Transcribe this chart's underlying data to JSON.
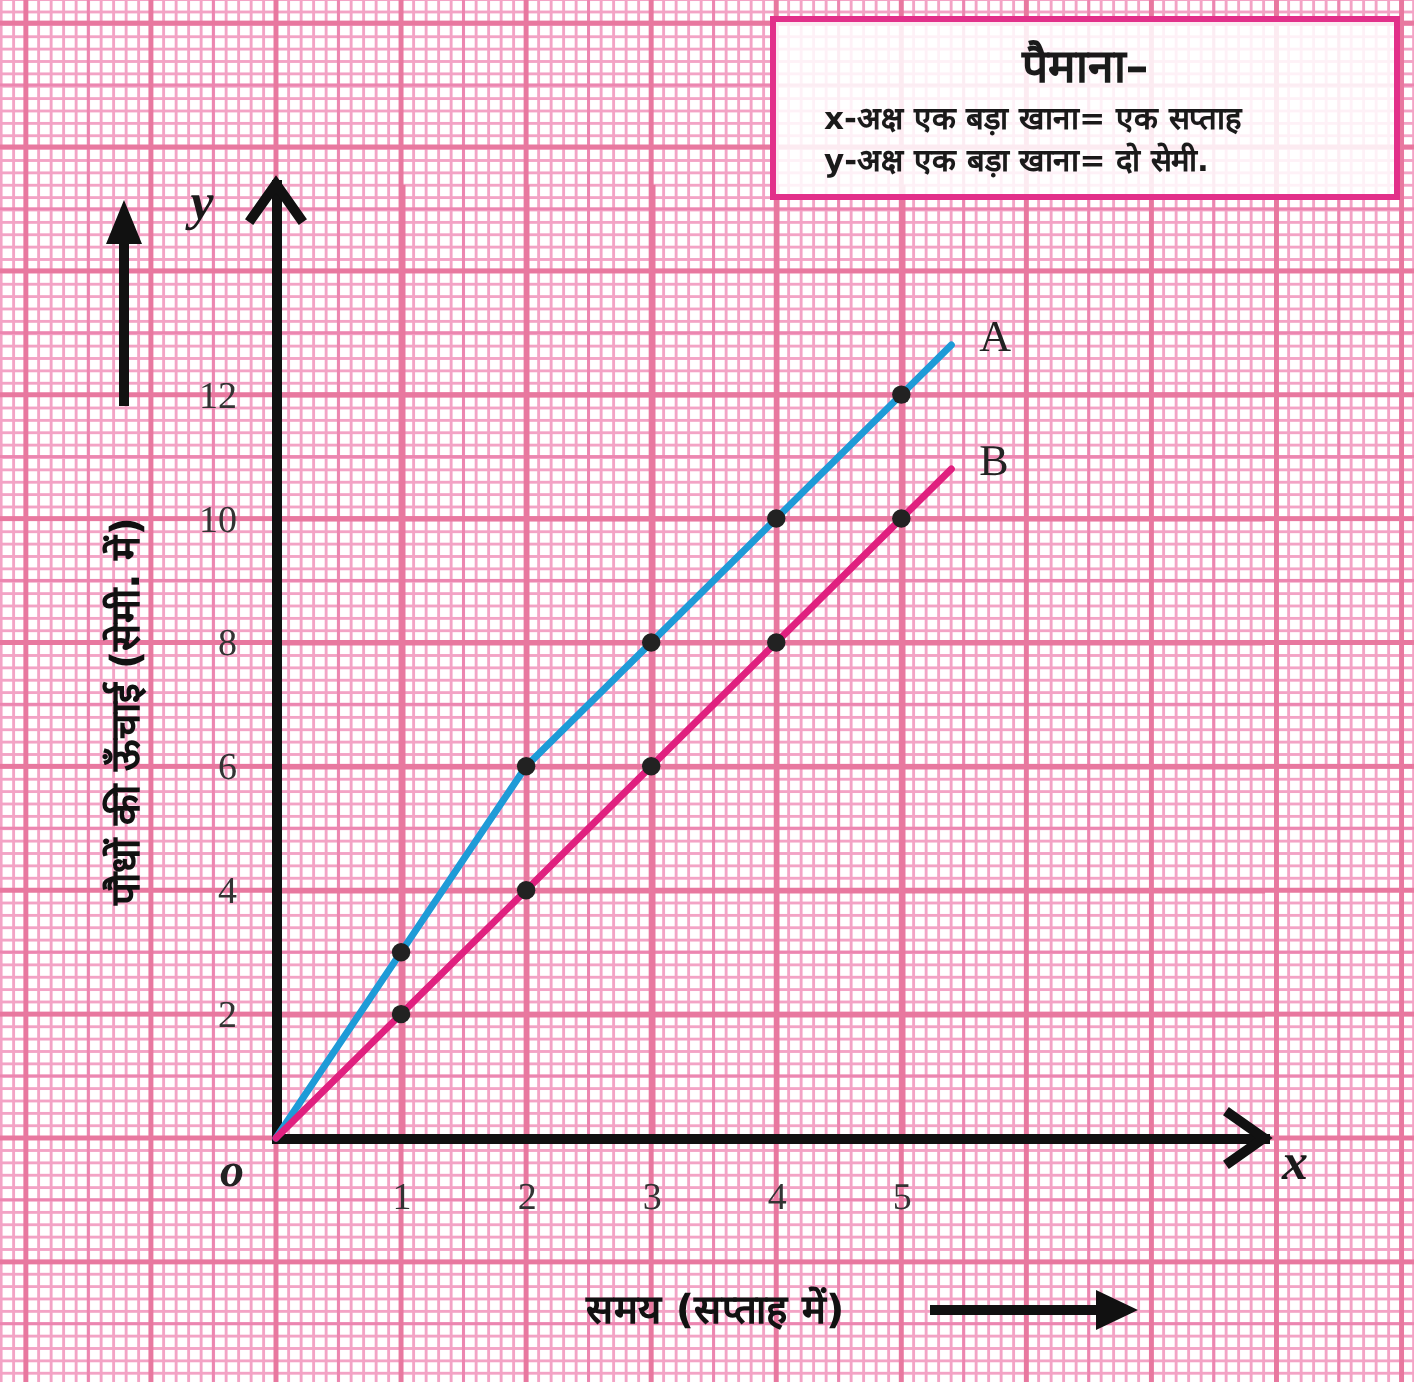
{
  "chart_data": {
    "type": "line",
    "xlabel": "समय (सप्ताह में)",
    "ylabel": "पौधों की ऊँचाई (सेमी. में)",
    "annotations": [
      "पैमाना–",
      "x-अक्ष एक बड़ा खाना= एक सप्ताह",
      "y-अक्ष एक बड़ा खाना= दो सेमी.",
      "x",
      "y",
      {
        "text": "o",
        "x": 0,
        "y": 0
      }
    ],
    "xlim": [
      0,
      7.9
    ],
    "ylim": [
      0,
      15.4
    ],
    "xticks": [
      1,
      2,
      3,
      4,
      5
    ],
    "yticks": [
      2,
      4,
      6,
      8,
      10,
      12
    ],
    "grid": true,
    "line_style": "solid",
    "series": [
      {
        "name": "A",
        "type": "line",
        "color": "#1e9bd7",
        "x": [
          0,
          1,
          2,
          3,
          4,
          5,
          5.4
        ],
        "values": [
          0,
          3,
          6,
          8,
          10,
          12,
          12.8
        ]
      },
      {
        "name": "B",
        "type": "line",
        "color": "#e0207f",
        "x": [
          0,
          1,
          2,
          3,
          4,
          5,
          5.4
        ],
        "values": [
          0,
          2,
          4,
          6,
          8,
          10,
          10.8
        ]
      },
      {
        "type": "scatter",
        "color": "#222222",
        "marker": "circle",
        "x": [
          1,
          2,
          3,
          4,
          5
        ],
        "values": [
          3,
          6,
          8,
          10,
          12
        ]
      },
      {
        "type": "scatter",
        "color": "#222222",
        "marker": "circle",
        "x": [
          1,
          2,
          3,
          4,
          5
        ],
        "values": [
          2,
          4,
          6,
          8,
          10
        ]
      }
    ]
  }
}
